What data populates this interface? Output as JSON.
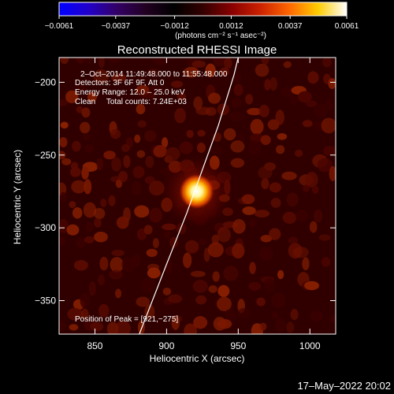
{
  "chart_data": {
    "type": "heatmap",
    "title": "Reconstructed RHESSI Image",
    "xlabel": "Heliocentric X (arcsec)",
    "ylabel": "Heliocentric Y (arcsec)",
    "xlim": [
      825,
      1018
    ],
    "ylim": [
      -373,
      -183
    ],
    "x_ticks": [
      850,
      900,
      950,
      1000
    ],
    "x_tick_labels": [
      "850",
      "900",
      "950",
      "1000"
    ],
    "y_ticks": [
      -200,
      -250,
      -300,
      -350
    ],
    "y_tick_labels": [
      "−200",
      "−250",
      "−300",
      "−350"
    ],
    "colorbar": {
      "range": [
        -0.0061,
        0.0061
      ],
      "ticks": [
        -0.0061,
        -0.0037,
        -0.0012,
        0.0012,
        0.0037,
        0.0061
      ],
      "tick_labels": [
        "−0.0061",
        "−0.0037",
        "−0.0012",
        "0.0012",
        "0.0037",
        "0.0061"
      ],
      "label": "(photons cm⁻² s⁻¹ asec⁻²)",
      "colormap": [
        "#0000ff",
        "#2200cc",
        "#330066",
        "#220022",
        "#000000",
        "#330000",
        "#880000",
        "#cc2200",
        "#ff6600",
        "#ffcc00",
        "#ffffff"
      ]
    },
    "annotations": [
      "2–Oct–2014 11:49:48.000 to 11:55:48.000",
      "Detectors: 3F 6F 9F, Att 0",
      "Energy Range: 12.0 – 25.0 keV",
      "Clean     Total counts: 7.24E+03"
    ],
    "peak_label": "Position of Peak = [921,−275]",
    "peak": [
      921,
      -275
    ],
    "limb_curve": [
      [
        881,
        -373
      ],
      [
        900,
        -325
      ],
      [
        914,
        -290
      ],
      [
        925,
        -260
      ],
      [
        936,
        -230
      ],
      [
        947,
        -195
      ],
      [
        950,
        -183
      ]
    ],
    "grid": false
  },
  "footer": {
    "timestamp": "17–May–2022 20:02"
  }
}
